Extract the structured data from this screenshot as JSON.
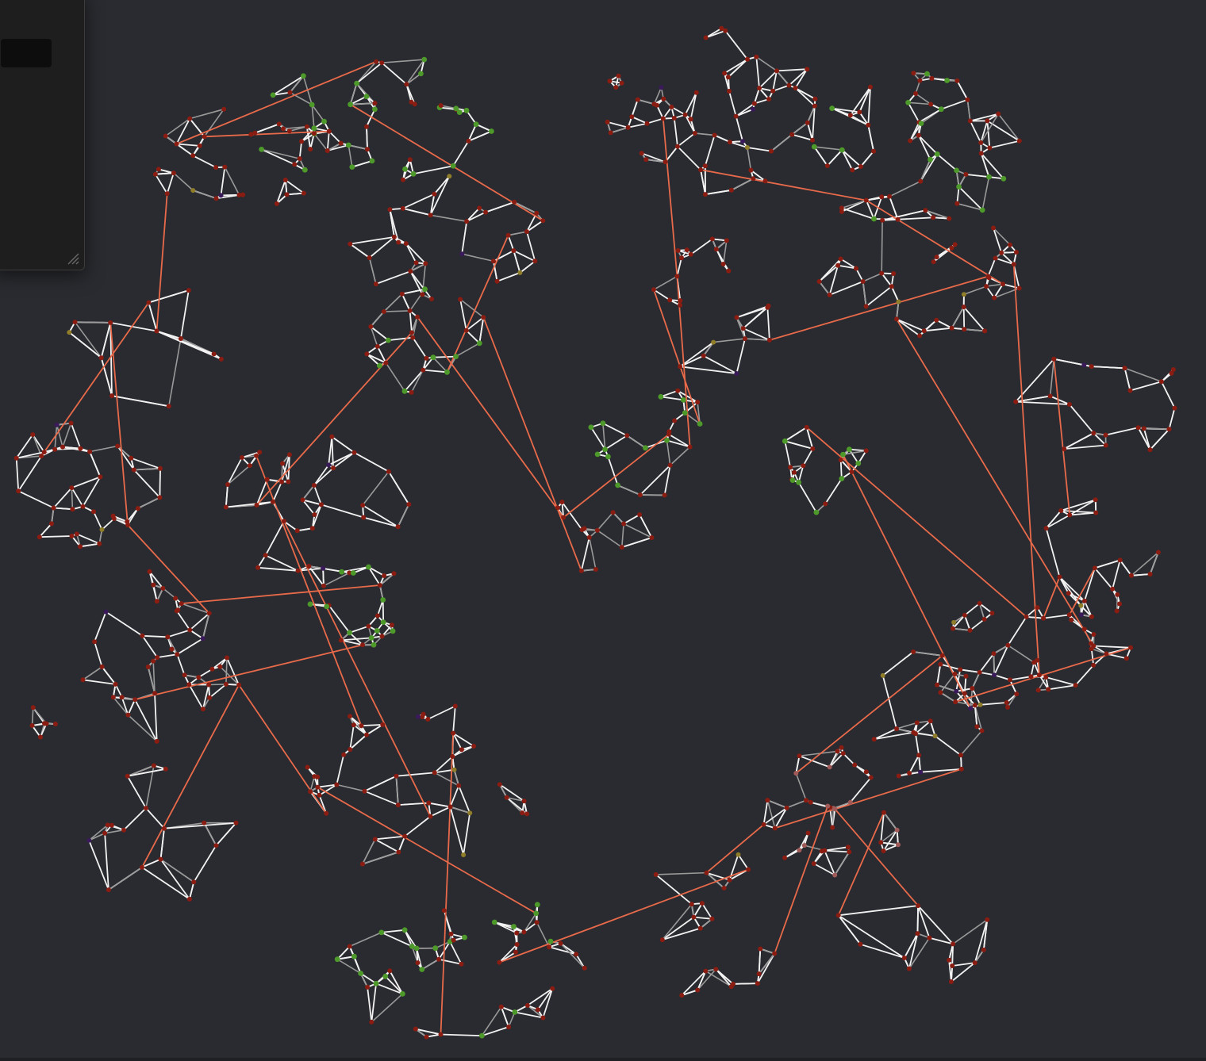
{
  "graph": {
    "background": "#2a2b30",
    "colors": {
      "edge_primary": "#f2f2f2",
      "edge_secondary": "#9a9a9a",
      "edge_bridge": "#e86a4a",
      "node_default": "#8a1c12",
      "node_group_green": "#4d9a2a",
      "node_group_olive": "#8f7d2a",
      "node_group_mauve": "#a05a58",
      "node_group_purple": "#3a1a5a"
    }
  },
  "panel": {
    "field_value": "",
    "field_placeholder": "",
    "grip_icon": "resize-grip-icon"
  }
}
